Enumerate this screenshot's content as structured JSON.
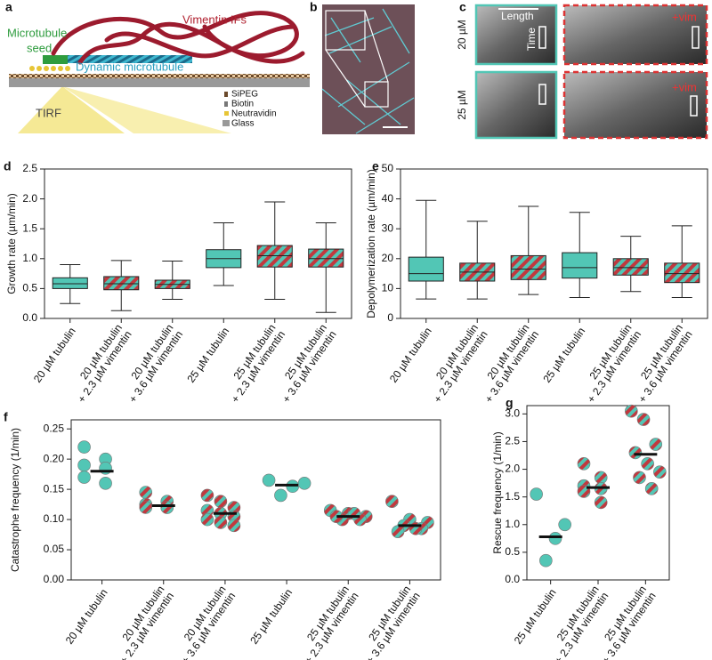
{
  "panels": {
    "a": {
      "label": "a",
      "vimentin": "Vimentin IFs",
      "microtubule": "Microtubule",
      "seed": "seed",
      "dynamic": "Dynamic microtubule",
      "tirf": "TIRF",
      "legend": [
        "SiPEG",
        "Biotin",
        "Neutravidin",
        "Glass"
      ]
    },
    "b": {
      "label": "b"
    },
    "c": {
      "label": "c",
      "length": "Length",
      "time": "Time",
      "row1": "20 µM",
      "row2": "25 µM",
      "vim1": "+vim",
      "vim2": "+vim"
    }
  },
  "chart_data": [
    {
      "type": "box",
      "label": "d",
      "ylabel": "Growth rate (µm/min)",
      "categories": [
        [
          "20 µM tubulin"
        ],
        [
          "20 µM tubulin",
          "+ 2.3 µM vimentin"
        ],
        [
          "20 µM tubulin",
          "+ 3.6 µM vimentin"
        ],
        [
          "25 µM tubulin"
        ],
        [
          "25 µM tubulin",
          "+ 2.3 µM vimentin"
        ],
        [
          "25 µM tubulin",
          "+ 3.6 µM vimentin"
        ]
      ],
      "boxes": [
        {
          "min": 0.25,
          "q1": 0.5,
          "median": 0.58,
          "q3": 0.68,
          "max": 0.9
        },
        {
          "min": 0.13,
          "q1": 0.48,
          "median": 0.58,
          "q3": 0.7,
          "max": 0.97
        },
        {
          "min": 0.32,
          "q1": 0.5,
          "median": 0.57,
          "q3": 0.64,
          "max": 0.96
        },
        {
          "min": 0.55,
          "q1": 0.85,
          "median": 1.0,
          "q3": 1.15,
          "max": 1.6
        },
        {
          "min": 0.32,
          "q1": 0.86,
          "median": 1.05,
          "q3": 1.22,
          "max": 1.95
        },
        {
          "min": 0.1,
          "q1": 0.86,
          "median": 1.0,
          "q3": 1.16,
          "max": 1.6
        }
      ],
      "styles": [
        "solid",
        "striped",
        "striped",
        "solid",
        "striped",
        "striped"
      ],
      "color": "#52c6b5",
      "color2": "#c0393f",
      "ylim": [
        0,
        2.5
      ],
      "yticks": [
        {
          "value": 0,
          "label": "0.0"
        },
        0.5,
        {
          "value": 1,
          "label": "1.0"
        },
        1.5,
        {
          "value": 2,
          "label": "2.0"
        },
        2.5
      ]
    },
    {
      "type": "box",
      "label": "e",
      "ylabel": "Depolymerization rate (µm/min)",
      "categories": [
        [
          "20 µM tubulin"
        ],
        [
          "20 µM tubulin",
          "+ 2.3 µM vimentin"
        ],
        [
          "20 µM tubulin",
          "+ 3.6 µM vimentin"
        ],
        [
          "25 µM tubulin"
        ],
        [
          "25 µM tubulin",
          "+ 2.3 µM vimentin"
        ],
        [
          "25 µM tubulin",
          "+ 3.6 µM vimentin"
        ]
      ],
      "boxes": [
        {
          "min": 6.5,
          "q1": 12.5,
          "median": 15,
          "q3": 20.5,
          "max": 39.5
        },
        {
          "min": 6.5,
          "q1": 12.5,
          "median": 15.5,
          "q3": 18.5,
          "max": 32.5
        },
        {
          "min": 8,
          "q1": 13,
          "median": 16.5,
          "q3": 21,
          "max": 37.5
        },
        {
          "min": 7,
          "q1": 13.5,
          "median": 17,
          "q3": 22,
          "max": 35.5
        },
        {
          "min": 9,
          "q1": 14.5,
          "median": 17,
          "q3": 20,
          "max": 27.5
        },
        {
          "min": 7,
          "q1": 12,
          "median": 15,
          "q3": 18.5,
          "max": 31
        }
      ],
      "styles": [
        "solid",
        "striped",
        "striped",
        "solid",
        "striped",
        "striped"
      ],
      "color": "#52c6b5",
      "color2": "#c0393f",
      "ylim": [
        0,
        50
      ],
      "yticks": [
        0,
        10,
        20,
        30,
        40,
        50
      ]
    },
    {
      "type": "dots",
      "label": "f",
      "ylabel": "Catastrophe frequency (1/min)",
      "categories": [
        [
          "20 µM tubulin"
        ],
        [
          "20 µM tubulin",
          "+ 2.3 µM vimentin"
        ],
        [
          "20 µM tubulin",
          "+ 3.6 µM vimentin"
        ],
        [
          "25 µM tubulin"
        ],
        [
          "25 µM tubulin",
          "+ 2.3 µM vimentin"
        ],
        [
          "25 µM tubulin",
          "+ 3.6 µM vimentin"
        ]
      ],
      "points": [
        [
          0.22,
          0.2,
          0.19,
          0.185,
          0.17,
          0.16
        ],
        [
          0.145,
          0.13,
          0.125,
          0.12,
          0.12,
          0.12
        ],
        [
          0.14,
          0.13,
          0.12,
          0.115,
          0.11,
          0.105,
          0.1,
          0.095,
          0.09
        ],
        [
          0.165,
          0.16,
          0.155,
          0.14
        ],
        [
          0.115,
          0.11,
          0.105,
          0.1,
          0.1,
          0.105,
          0.11
        ],
        [
          0.13,
          0.1,
          0.095,
          0.09,
          0.085,
          0.08,
          0.085
        ]
      ],
      "means": [
        0.18,
        0.123,
        0.11,
        0.157,
        0.105,
        0.09
      ],
      "styles": [
        "solid",
        "striped",
        "striped",
        "solid",
        "striped",
        "striped"
      ],
      "color": "#52c6b5",
      "color2": "#c0393f",
      "ylim": [
        0,
        0.265
      ],
      "yticks": [
        {
          "value": 0,
          "label": "0.00"
        },
        0.05,
        {
          "value": 0.1,
          "label": "0.10"
        },
        0.15,
        {
          "value": 0.2,
          "label": "0.20"
        },
        0.25
      ]
    },
    {
      "type": "dots",
      "label": "g",
      "ylabel": "Rescue frequency (1/min)",
      "categories": [
        [
          "25 µM tubulin"
        ],
        [
          "25 µM tubulin",
          "+ 2.3 µM vimentin"
        ],
        [
          "25 µM tubulin",
          "+ 3.6 µM vimentin"
        ]
      ],
      "points": [
        [
          1.55,
          1.0,
          0.75,
          0.35
        ],
        [
          2.1,
          1.85,
          1.7,
          1.65,
          1.6,
          1.4
        ],
        [
          3.05,
          2.9,
          2.45,
          2.3,
          2.1,
          1.95,
          1.85,
          1.65
        ]
      ],
      "means": [
        0.78,
        1.67,
        2.27
      ],
      "styles": [
        "solid",
        "striped",
        "striped"
      ],
      "color": "#52c6b5",
      "color2": "#c0393f",
      "ylim": [
        0,
        3.15
      ],
      "yticks": [
        {
          "value": 0,
          "label": "0.0"
        },
        0.5,
        {
          "value": 1,
          "label": "1.0"
        },
        1.5,
        {
          "value": 2,
          "label": "2.0"
        },
        2.5,
        {
          "value": 3,
          "label": "3.0"
        }
      ]
    }
  ]
}
